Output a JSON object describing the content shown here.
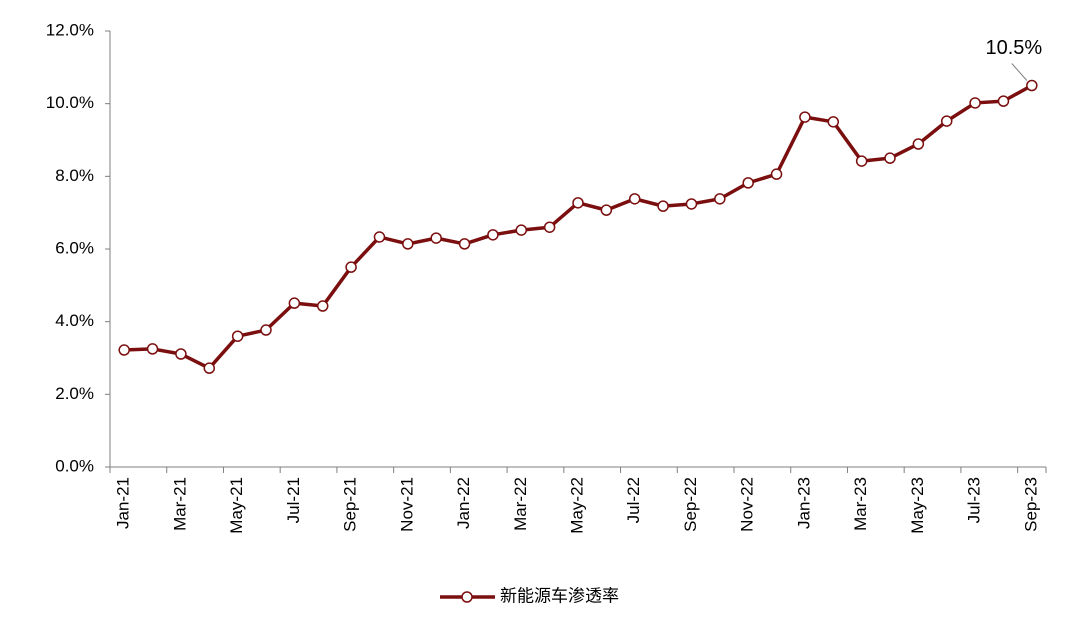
{
  "chart_data": {
    "type": "line",
    "categories": [
      "Jan-21",
      null,
      "Mar-21",
      null,
      "May-21",
      null,
      "Jul-21",
      null,
      "Sep-21",
      null,
      "Nov-21",
      null,
      "Jan-22",
      null,
      "Mar-22",
      null,
      "May-22",
      null,
      "Jul-22",
      null,
      "Sep-22",
      null,
      "Nov-22",
      null,
      "Jan-23",
      null,
      "Mar-23",
      null,
      "May-23",
      null,
      "Jul-23",
      null,
      "Sep-23"
    ],
    "series": [
      {
        "name": "新能源车渗透率",
        "color": "#7b0f0f",
        "values": [
          3.22,
          3.25,
          3.11,
          2.72,
          3.6,
          3.77,
          4.51,
          4.43,
          5.5,
          6.33,
          6.14,
          6.3,
          6.14,
          6.39,
          6.52,
          6.6,
          7.27,
          7.07,
          7.38,
          7.18,
          7.24,
          7.38,
          7.82,
          8.06,
          9.63,
          9.5,
          8.42,
          8.5,
          8.89,
          9.52,
          10.02,
          10.07,
          10.5
        ],
        "value_labels": [
          null,
          null,
          null,
          null,
          null,
          null,
          null,
          null,
          null,
          null,
          null,
          null,
          null,
          null,
          null,
          null,
          null,
          null,
          null,
          null,
          null,
          null,
          null,
          null,
          null,
          null,
          null,
          null,
          null,
          null,
          null,
          null,
          "10.5%"
        ]
      }
    ],
    "ylim": [
      0,
      12
    ],
    "yticks": [
      {
        "value": 0,
        "label": "0.0%"
      },
      {
        "value": 2,
        "label": "2.0%"
      },
      {
        "value": 4,
        "label": "4.0%"
      },
      {
        "value": 6,
        "label": "6.0%"
      },
      {
        "value": 8,
        "label": "8.0%"
      },
      {
        "value": 10,
        "label": "10.0%"
      },
      {
        "value": 12,
        "label": "12.0%"
      }
    ],
    "grid": false,
    "legend": "bottom"
  }
}
